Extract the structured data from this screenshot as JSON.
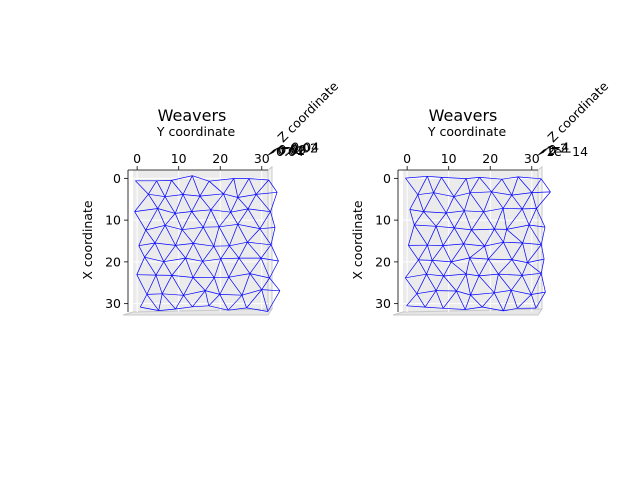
{
  "chart_data": [
    {
      "type": "line",
      "title": "Weavers",
      "xlabel": "Y coordinate",
      "ylabel": "X coordinate",
      "zlabel": "Z coordinate",
      "x_ticks": [
        "0",
        "10",
        "20",
        "30"
      ],
      "y_ticks": [
        "0",
        "10",
        "20",
        "30"
      ],
      "z_ticks": [
        "0.04",
        "0.02",
        "0.00",
        "−0.02",
        "−0.04"
      ],
      "xlim": [
        -1,
        31.5
      ],
      "ylim": [
        -2,
        32
      ],
      "line_color": "#0000ff",
      "grid": true,
      "seed": 7
    },
    {
      "type": "line",
      "title": "Weavers",
      "xlabel": "Y coordinate",
      "ylabel": "X coordinate",
      "zlabel": "Z coordinate",
      "x_ticks": [
        "0",
        "10",
        "20",
        "30"
      ],
      "y_ticks": [
        "0",
        "10",
        "20",
        "30"
      ],
      "z_ticks": [
        "1e−14",
        "2",
        "0",
        "−2",
        "−4"
      ],
      "xlim": [
        -1,
        31.5
      ],
      "ylim": [
        -2,
        32
      ],
      "line_color": "#0000ff",
      "grid": true,
      "seed": 13
    }
  ]
}
